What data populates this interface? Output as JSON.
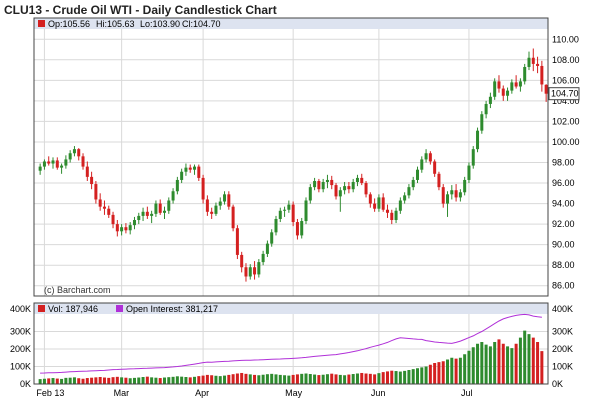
{
  "colors": {
    "up": "#2e8b2e",
    "down": "#d42020",
    "band": "#dde3f0",
    "open_interest": "#b030d8",
    "grid": "#d9d9d9",
    "frame": "#444444"
  },
  "chart_data": [
    {
      "type": "candlestick",
      "title": "CLU13 - Crude Oil WTI - Daily Candlestick Chart",
      "ohlc_legend": {
        "open": "Op:105.56",
        "high": "Hi:105.63",
        "low": "Lo:103.90",
        "close": "Cl:104.70"
      },
      "last_price_label": "104.70",
      "watermark": "(c) Barchart.com",
      "ylim": [
        85,
        111
      ],
      "y_ticks": [
        "110.00",
        "108.00",
        "106.00",
        "104.00",
        "102.00",
        "100.00",
        "98.00",
        "96.00",
        "94.00",
        "92.00",
        "90.00",
        "88.00",
        "86.00"
      ],
      "x_ticks": [
        {
          "label": "Feb 13",
          "index": 1
        },
        {
          "label": "Mar",
          "index": 19
        },
        {
          "label": "Apr",
          "index": 38
        },
        {
          "label": "May",
          "index": 59
        },
        {
          "label": "Jun",
          "index": 79
        },
        {
          "label": "Jul",
          "index": 100
        }
      ],
      "grid": true,
      "x_count": 118,
      "ohlc": [
        [
          97.2,
          97.9,
          96.8,
          97.6
        ],
        [
          97.6,
          98.3,
          97.3,
          98.1
        ],
        [
          98.1,
          98.6,
          97.7,
          97.9
        ],
        [
          97.9,
          98.5,
          97.4,
          98.2
        ],
        [
          98.2,
          98.5,
          97.3,
          97.5
        ],
        [
          97.5,
          97.9,
          96.9,
          97.7
        ],
        [
          97.7,
          98.7,
          97.4,
          98.3
        ],
        [
          98.3,
          99.2,
          98.0,
          98.9
        ],
        [
          98.9,
          99.6,
          98.6,
          99.3
        ],
        [
          99.3,
          99.4,
          98.2,
          98.6
        ],
        [
          98.6,
          98.9,
          97.3,
          97.6
        ],
        [
          97.6,
          98.1,
          96.2,
          96.6
        ],
        [
          96.6,
          97.1,
          95.4,
          95.9
        ],
        [
          95.9,
          96.2,
          94.0,
          94.4
        ],
        [
          94.4,
          95.0,
          93.3,
          93.7
        ],
        [
          93.7,
          94.3,
          92.9,
          93.5
        ],
        [
          93.5,
          93.8,
          92.6,
          92.9
        ],
        [
          92.9,
          93.2,
          91.6,
          92.0
        ],
        [
          92.0,
          92.4,
          90.8,
          91.3
        ],
        [
          91.3,
          92.0,
          90.9,
          91.7
        ],
        [
          91.7,
          92.1,
          91.1,
          91.4
        ],
        [
          91.4,
          92.2,
          91.0,
          91.9
        ],
        [
          91.9,
          92.7,
          91.5,
          92.4
        ],
        [
          92.4,
          93.1,
          92.0,
          92.8
        ],
        [
          92.8,
          93.6,
          92.3,
          93.2
        ],
        [
          93.2,
          93.7,
          92.5,
          92.8
        ],
        [
          92.8,
          93.3,
          92.1,
          93.0
        ],
        [
          93.0,
          94.3,
          92.7,
          94.0
        ],
        [
          94.0,
          94.4,
          92.9,
          93.1
        ],
        [
          93.1,
          93.7,
          92.5,
          93.3
        ],
        [
          93.3,
          94.6,
          93.0,
          94.3
        ],
        [
          94.3,
          95.5,
          94.0,
          95.2
        ],
        [
          95.2,
          96.6,
          94.9,
          96.3
        ],
        [
          96.3,
          97.4,
          96.0,
          97.1
        ],
        [
          97.1,
          97.9,
          96.7,
          97.5
        ],
        [
          97.5,
          97.8,
          97.0,
          97.3
        ],
        [
          97.3,
          97.8,
          96.8,
          97.6
        ],
        [
          97.6,
          97.8,
          96.2,
          96.5
        ],
        [
          96.5,
          96.8,
          94.0,
          94.4
        ],
        [
          94.4,
          94.8,
          92.8,
          93.2
        ],
        [
          93.2,
          93.6,
          92.5,
          93.0
        ],
        [
          93.0,
          94.1,
          92.8,
          93.8
        ],
        [
          93.8,
          94.6,
          93.4,
          94.2
        ],
        [
          94.2,
          95.2,
          93.9,
          94.9
        ],
        [
          94.9,
          95.2,
          93.4,
          93.7
        ],
        [
          93.7,
          93.9,
          91.3,
          91.6
        ],
        [
          91.6,
          91.9,
          88.6,
          89.0
        ],
        [
          89.0,
          89.3,
          87.3,
          87.8
        ],
        [
          87.8,
          88.2,
          86.4,
          86.9
        ],
        [
          86.9,
          88.1,
          86.6,
          87.8
        ],
        [
          87.8,
          88.4,
          86.6,
          87.1
        ],
        [
          87.1,
          88.6,
          86.8,
          88.3
        ],
        [
          88.3,
          89.4,
          88.0,
          89.1
        ],
        [
          89.1,
          90.4,
          88.8,
          90.1
        ],
        [
          90.1,
          91.5,
          89.8,
          91.2
        ],
        [
          91.2,
          92.8,
          90.9,
          92.5
        ],
        [
          92.5,
          93.6,
          92.2,
          93.3
        ],
        [
          93.3,
          93.7,
          92.7,
          93.4
        ],
        [
          93.4,
          94.3,
          93.1,
          93.9
        ],
        [
          93.9,
          94.2,
          91.8,
          92.2
        ],
        [
          92.2,
          92.5,
          90.5,
          90.9
        ],
        [
          90.9,
          92.6,
          90.6,
          92.3
        ],
        [
          92.3,
          94.6,
          92.0,
          94.3
        ],
        [
          94.3,
          95.9,
          94.0,
          95.6
        ],
        [
          95.6,
          96.5,
          95.3,
          96.2
        ],
        [
          96.2,
          96.4,
          95.1,
          95.4
        ],
        [
          95.4,
          96.4,
          95.1,
          96.1
        ],
        [
          96.1,
          96.8,
          95.5,
          96.3
        ],
        [
          96.3,
          96.7,
          95.4,
          95.8
        ],
        [
          95.8,
          96.0,
          94.4,
          94.7
        ],
        [
          94.7,
          95.6,
          93.2,
          95.3
        ],
        [
          95.3,
          96.1,
          94.9,
          95.7
        ],
        [
          95.7,
          96.1,
          95.0,
          95.4
        ],
        [
          95.4,
          96.4,
          95.1,
          96.1
        ],
        [
          96.1,
          96.8,
          95.7,
          96.5
        ],
        [
          96.5,
          96.9,
          95.8,
          96.0
        ],
        [
          96.0,
          96.2,
          94.6,
          94.9
        ],
        [
          94.9,
          95.1,
          93.6,
          94.0
        ],
        [
          94.0,
          94.5,
          93.2,
          93.5
        ],
        [
          93.5,
          94.9,
          93.2,
          94.6
        ],
        [
          94.6,
          95.0,
          93.2,
          93.4
        ],
        [
          93.4,
          93.9,
          92.6,
          93.1
        ],
        [
          93.1,
          93.4,
          92.0,
          92.4
        ],
        [
          92.4,
          93.6,
          92.1,
          93.3
        ],
        [
          93.3,
          94.6,
          93.0,
          94.3
        ],
        [
          94.3,
          95.1,
          94.0,
          94.8
        ],
        [
          94.8,
          95.9,
          94.5,
          95.6
        ],
        [
          95.6,
          96.6,
          95.3,
          96.3
        ],
        [
          96.3,
          97.6,
          96.0,
          97.3
        ],
        [
          97.3,
          98.6,
          97.0,
          98.3
        ],
        [
          98.3,
          99.3,
          98.0,
          98.9
        ],
        [
          98.9,
          99.1,
          97.8,
          98.1
        ],
        [
          98.1,
          98.3,
          96.6,
          96.9
        ],
        [
          96.9,
          97.1,
          95.3,
          95.6
        ],
        [
          95.6,
          95.9,
          93.6,
          94.0
        ],
        [
          94.0,
          95.2,
          92.7,
          94.9
        ],
        [
          94.9,
          95.8,
          94.4,
          95.3
        ],
        [
          95.3,
          95.9,
          94.2,
          94.6
        ],
        [
          94.6,
          95.4,
          94.2,
          95.1
        ],
        [
          95.1,
          96.6,
          94.8,
          96.3
        ],
        [
          96.3,
          98.0,
          96.0,
          97.7
        ],
        [
          97.7,
          99.6,
          97.4,
          99.3
        ],
        [
          99.3,
          101.4,
          99.0,
          101.1
        ],
        [
          101.1,
          103.0,
          100.8,
          102.7
        ],
        [
          102.7,
          104.0,
          102.3,
          103.7
        ],
        [
          103.7,
          104.8,
          103.3,
          104.4
        ],
        [
          104.4,
          106.2,
          104.1,
          105.9
        ],
        [
          105.9,
          106.5,
          104.8,
          105.2
        ],
        [
          105.2,
          105.5,
          104.0,
          104.5
        ],
        [
          104.5,
          105.3,
          104.0,
          105.0
        ],
        [
          105.0,
          106.1,
          104.7,
          105.8
        ],
        [
          105.8,
          106.5,
          105.2,
          105.4
        ],
        [
          105.4,
          106.2,
          104.9,
          105.9
        ],
        [
          105.9,
          107.6,
          105.6,
          107.3
        ],
        [
          107.3,
          108.8,
          107.0,
          108.2
        ],
        [
          108.2,
          109.1,
          106.9,
          107.6
        ],
        [
          107.6,
          108.3,
          106.7,
          107.4
        ],
        [
          107.4,
          107.9,
          104.9,
          105.6
        ],
        [
          105.56,
          105.63,
          103.9,
          104.7
        ]
      ]
    },
    {
      "type": "bar",
      "legend": [
        {
          "label": "Vol: 187,946",
          "color": "#d42020"
        },
        {
          "label": "Open Interest: 381,217",
          "color": "#b030d8"
        }
      ],
      "ylim": [
        0,
        400000
      ],
      "y_ticks": [
        "400K",
        "300K",
        "200K",
        "100K",
        "0K"
      ],
      "volume": [
        28000,
        30000,
        32000,
        34000,
        31000,
        29000,
        35000,
        36000,
        38000,
        33000,
        30000,
        34000,
        36000,
        38000,
        40000,
        37000,
        35000,
        39000,
        41000,
        38000,
        36000,
        33000,
        35000,
        37000,
        40000,
        42000,
        38000,
        36000,
        34000,
        37000,
        39000,
        41000,
        44000,
        42000,
        40000,
        38000,
        41000,
        45000,
        48000,
        52000,
        50000,
        47000,
        45000,
        48000,
        52000,
        56000,
        60000,
        63000,
        58000,
        55000,
        52000,
        50000,
        53000,
        56000,
        58000,
        55000,
        52000,
        50000,
        48000,
        52000,
        55000,
        58000,
        60000,
        57000,
        54000,
        51000,
        53000,
        56000,
        59000,
        55000,
        52000,
        50000,
        54000,
        57000,
        60000,
        63000,
        60000,
        58000,
        55000,
        62000,
        68000,
        72000,
        76000,
        74000,
        71000,
        75000,
        80000,
        85000,
        90000,
        95000,
        100000,
        110000,
        120000,
        125000,
        130000,
        140000,
        150000,
        145000,
        150000,
        170000,
        190000,
        210000,
        230000,
        240000,
        225000,
        215000,
        240000,
        255000,
        230000,
        215000,
        205000,
        230000,
        265000,
        305000,
        285000,
        265000,
        240000,
        187946
      ],
      "open_interest": [
        62000,
        63000,
        64000,
        64000,
        65000,
        66000,
        68000,
        70000,
        71000,
        72000,
        73000,
        74000,
        75000,
        76000,
        77000,
        78000,
        80000,
        82000,
        83000,
        84000,
        85000,
        86000,
        87000,
        88000,
        89000,
        90000,
        91000,
        92000,
        93000,
        94000,
        96000,
        98000,
        100000,
        103000,
        106000,
        110000,
        114000,
        118000,
        122000,
        125000,
        124000,
        126000,
        128000,
        129000,
        130000,
        132000,
        134000,
        135000,
        136000,
        136000,
        137000,
        138000,
        139000,
        140000,
        141000,
        142000,
        143000,
        144000,
        145000,
        146000,
        148000,
        150000,
        152000,
        155000,
        158000,
        160000,
        162000,
        164000,
        166000,
        168000,
        172000,
        176000,
        180000,
        185000,
        190000,
        196000,
        202000,
        210000,
        216000,
        222000,
        230000,
        238000,
        248000,
        258000,
        264000,
        262000,
        260000,
        258000,
        256000,
        255000,
        248000,
        244000,
        240000,
        238000,
        236000,
        234000,
        232000,
        238000,
        245000,
        255000,
        265000,
        275000,
        288000,
        300000,
        315000,
        330000,
        345000,
        360000,
        372000,
        380000,
        386000,
        392000,
        396000,
        398000,
        395000,
        388000,
        384000,
        381217
      ],
      "x_ticks": [
        "Feb 13",
        "Mar",
        "Apr",
        "May",
        "Jun",
        "Jul"
      ]
    }
  ]
}
